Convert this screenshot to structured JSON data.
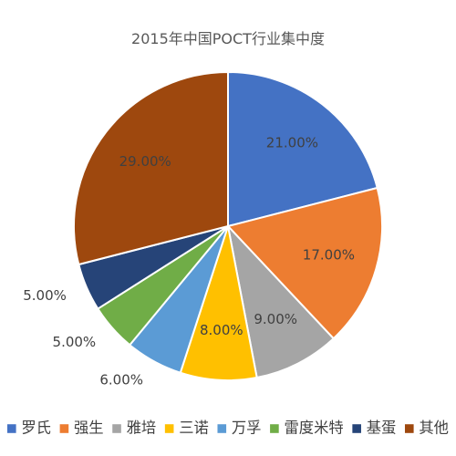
{
  "chart_data": {
    "type": "pie",
    "title": "2015年中国POCT行业集中度",
    "categories": [
      "罗氏",
      "强生",
      "雅培",
      "三诺",
      "万孚",
      "雷度米特",
      "基蛋",
      "其他"
    ],
    "values": [
      21,
      17,
      9,
      8,
      6,
      5,
      5,
      29
    ],
    "value_labels": [
      "21.00%",
      "17.00%",
      "9.00%",
      "8.00%",
      "6.00%",
      "5.00%",
      "5.00%",
      "29.00%"
    ],
    "colors": [
      "#4472C4",
      "#ED7D31",
      "#A5A5A5",
      "#FFC000",
      "#5B9BD5",
      "#70AD47",
      "#264478",
      "#9E480E"
    ],
    "legend_position": "bottom",
    "legend_labels": [
      "罗氏",
      "强生",
      "雅培",
      "三诺",
      "万孚",
      "雷度米特",
      "基蛋",
      "其他"
    ]
  }
}
